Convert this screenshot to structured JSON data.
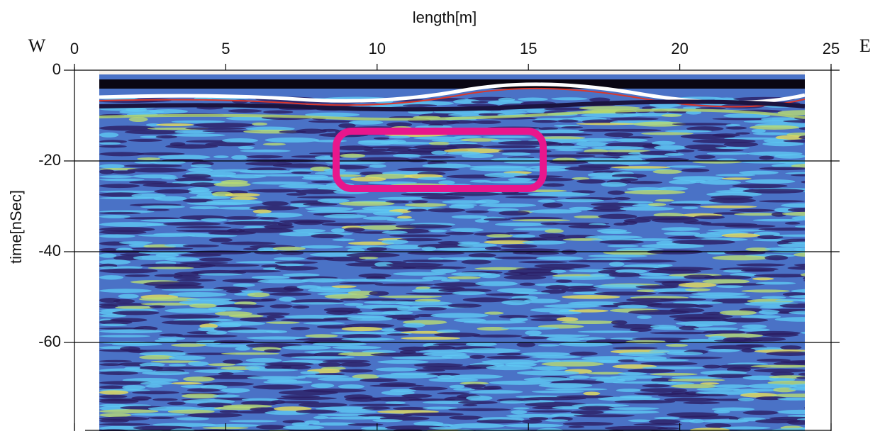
{
  "chart_data": {
    "type": "radargram",
    "x_label": "length[m]",
    "y_label": "time[nSec]",
    "annotations": [
      "W",
      "E"
    ],
    "xlim": [
      0,
      25
    ],
    "ylim": [
      -79,
      0
    ],
    "xticks": [
      0,
      5,
      10,
      15,
      20,
      25
    ],
    "yticks": [
      0,
      -20,
      -40,
      -60
    ],
    "grid": true
  }
}
